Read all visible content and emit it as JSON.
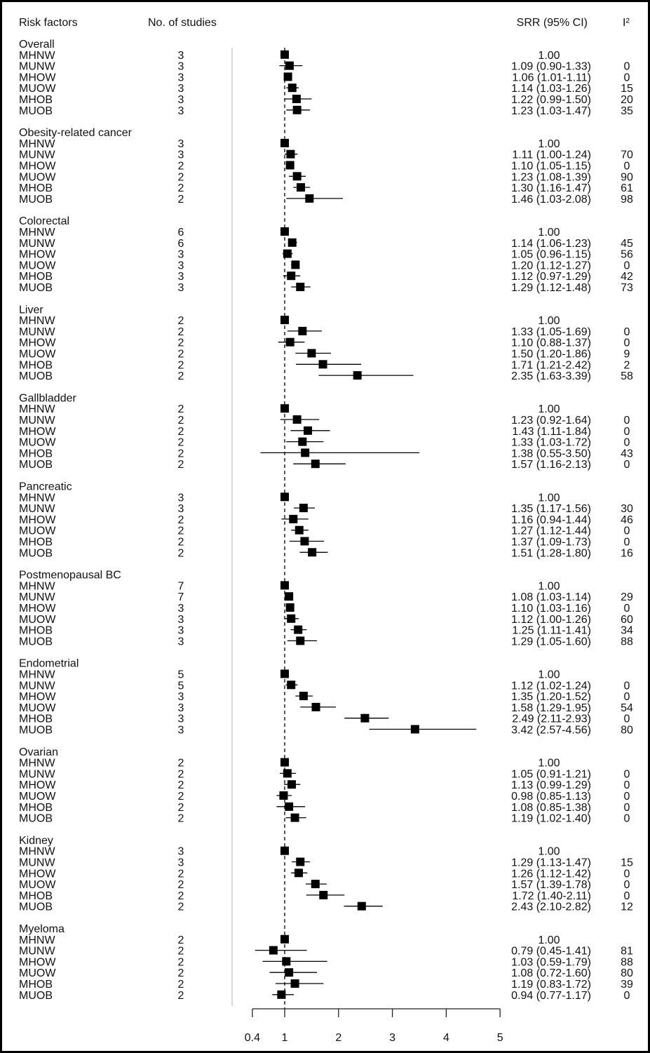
{
  "chart_data": {
    "type": "forest",
    "headers": {
      "risk_factors": "Risk factors",
      "studies": "No. of studies",
      "srr": "SRR (95% CI)",
      "i2": "I²"
    },
    "x_ticks": [
      "0.4",
      "1",
      "2",
      "3",
      "4",
      "5"
    ],
    "xlim": [
      0.4,
      5
    ],
    "x_scale": "linear",
    "reference_line": 1,
    "colors": {
      "marker": "#000000",
      "reference": "#000000",
      "divider": "#cccccc"
    },
    "groups": [
      {
        "name": "Overall",
        "rows": [
          {
            "label": "MHNW",
            "n": "3",
            "srr": "1.00",
            "ci": "",
            "i2": ""
          },
          {
            "label": "MUNW",
            "n": "3",
            "srr": "1.09",
            "lo": 0.9,
            "hi": 1.33,
            "ci": "1.09 (0.90-1.33)",
            "i2": "0"
          },
          {
            "label": "MHOW",
            "n": "3",
            "srr": "1.06",
            "lo": 1.01,
            "hi": 1.11,
            "ci": "1.06 (1.01-1.11)",
            "i2": "0"
          },
          {
            "label": "MUOW",
            "n": "3",
            "srr": "1.14",
            "lo": 1.03,
            "hi": 1.26,
            "ci": "1.14 (1.03-1.26)",
            "i2": "15"
          },
          {
            "label": "MHOB",
            "n": "3",
            "srr": "1.22",
            "lo": 0.99,
            "hi": 1.5,
            "ci": "1.22 (0.99-1.50)",
            "i2": "20"
          },
          {
            "label": "MUOB",
            "n": "3",
            "srr": "1.23",
            "lo": 1.03,
            "hi": 1.47,
            "ci": "1.23 (1.03-1.47)",
            "i2": "35"
          }
        ]
      },
      {
        "name": "Obesity-related cancer",
        "rows": [
          {
            "label": "MHNW",
            "n": "3",
            "srr": "1.00",
            "ci": "",
            "i2": ""
          },
          {
            "label": "MUNW",
            "n": "3",
            "srr": "1.11",
            "lo": 1.0,
            "hi": 1.24,
            "ci": "1.11 (1.00-1.24)",
            "i2": "70"
          },
          {
            "label": "MHOW",
            "n": "2",
            "srr": "1.10",
            "lo": 1.05,
            "hi": 1.15,
            "ci": "1.10 (1.05-1.15)",
            "i2": "0"
          },
          {
            "label": "MUOW",
            "n": "2",
            "srr": "1.23",
            "lo": 1.08,
            "hi": 1.39,
            "ci": "1.23 (1.08-1.39)",
            "i2": "90"
          },
          {
            "label": "MHOB",
            "n": "2",
            "srr": "1.30",
            "lo": 1.16,
            "hi": 1.47,
            "ci": "1.30 (1.16-1.47)",
            "i2": "61"
          },
          {
            "label": "MUOB",
            "n": "2",
            "srr": "1.46",
            "lo": 1.03,
            "hi": 2.08,
            "ci": "1.46 (1.03-2.08)",
            "i2": "98"
          }
        ]
      },
      {
        "name": "Colorectal",
        "rows": [
          {
            "label": "MHNW",
            "n": "6",
            "srr": "1.00",
            "ci": "",
            "i2": ""
          },
          {
            "label": "MUNW",
            "n": "6",
            "srr": "1.14",
            "lo": 1.06,
            "hi": 1.23,
            "ci": "1.14 (1.06-1.23)",
            "i2": "45"
          },
          {
            "label": "MHOW",
            "n": "3",
            "srr": "1.05",
            "lo": 0.96,
            "hi": 1.15,
            "ci": "1.05 (0.96-1.15)",
            "i2": "56"
          },
          {
            "label": "MUOW",
            "n": "3",
            "srr": "1.20",
            "lo": 1.12,
            "hi": 1.27,
            "ci": "1.20 (1.12-1.27)",
            "i2": "0"
          },
          {
            "label": "MHOB",
            "n": "3",
            "srr": "1.12",
            "lo": 0.97,
            "hi": 1.29,
            "ci": "1.12 (0.97-1.29)",
            "i2": "42"
          },
          {
            "label": "MUOB",
            "n": "3",
            "srr": "1.29",
            "lo": 1.12,
            "hi": 1.48,
            "ci": "1.29 (1.12-1.48)",
            "i2": "73"
          }
        ]
      },
      {
        "name": "Liver",
        "rows": [
          {
            "label": "MHNW",
            "n": "2",
            "srr": "1.00",
            "ci": "",
            "i2": ""
          },
          {
            "label": "MUNW",
            "n": "2",
            "srr": "1.33",
            "lo": 1.05,
            "hi": 1.69,
            "ci": "1.33 (1.05-1.69)",
            "i2": "0"
          },
          {
            "label": "MHOW",
            "n": "2",
            "srr": "1.10",
            "lo": 0.88,
            "hi": 1.37,
            "ci": "1.10 (0.88-1.37)",
            "i2": "0"
          },
          {
            "label": "MUOW",
            "n": "2",
            "srr": "1.50",
            "lo": 1.2,
            "hi": 1.86,
            "ci": "1.50 (1.20-1.86)",
            "i2": "9"
          },
          {
            "label": "MHOB",
            "n": "2",
            "srr": "1.71",
            "lo": 1.21,
            "hi": 2.42,
            "ci": "1.71 (1.21-2.42)",
            "i2": "2"
          },
          {
            "label": "MUOB",
            "n": "2",
            "srr": "2.35",
            "lo": 1.63,
            "hi": 3.39,
            "ci": "2.35 (1.63-3.39)",
            "i2": "58"
          }
        ]
      },
      {
        "name": "Gallbladder",
        "rows": [
          {
            "label": "MHNW",
            "n": "2",
            "srr": "1.00",
            "ci": "",
            "i2": ""
          },
          {
            "label": "MUNW",
            "n": "2",
            "srr": "1.23",
            "lo": 0.92,
            "hi": 1.64,
            "ci": "1.23 (0.92-1.64)",
            "i2": "0"
          },
          {
            "label": "MHOW",
            "n": "2",
            "srr": "1.43",
            "lo": 1.11,
            "hi": 1.84,
            "ci": "1.43 (1.11-1.84)",
            "i2": "0"
          },
          {
            "label": "MUOW",
            "n": "2",
            "srr": "1.33",
            "lo": 1.03,
            "hi": 1.72,
            "ci": "1.33 (1.03-1.72)",
            "i2": "0"
          },
          {
            "label": "MHOB",
            "n": "2",
            "srr": "1.38",
            "lo": 0.55,
            "hi": 3.5,
            "ci": "1.38 (0.55-3.50)",
            "i2": "43"
          },
          {
            "label": "MUOB",
            "n": "2",
            "srr": "1.57",
            "lo": 1.16,
            "hi": 2.13,
            "ci": "1.57 (1.16-2.13)",
            "i2": "0"
          }
        ]
      },
      {
        "name": "Pancreatic",
        "rows": [
          {
            "label": "MHNW",
            "n": "3",
            "srr": "1.00",
            "ci": "",
            "i2": ""
          },
          {
            "label": "MUNW",
            "n": "3",
            "srr": "1.35",
            "lo": 1.17,
            "hi": 1.56,
            "ci": "1.35 (1.17-1.56)",
            "i2": "30"
          },
          {
            "label": "MHOW",
            "n": "2",
            "srr": "1.16",
            "lo": 0.94,
            "hi": 1.44,
            "ci": "1.16 (0.94-1.44)",
            "i2": "46"
          },
          {
            "label": "MUOW",
            "n": "2",
            "srr": "1.27",
            "lo": 1.12,
            "hi": 1.44,
            "ci": "1.27 (1.12-1.44)",
            "i2": "0"
          },
          {
            "label": "MHOB",
            "n": "2",
            "srr": "1.37",
            "lo": 1.09,
            "hi": 1.73,
            "ci": "1.37 (1.09-1.73)",
            "i2": "0"
          },
          {
            "label": "MUOB",
            "n": "2",
            "srr": "1.51",
            "lo": 1.28,
            "hi": 1.8,
            "ci": "1.51 (1.28-1.80)",
            "i2": "16"
          }
        ]
      },
      {
        "name": "Postmenopausal BC",
        "rows": [
          {
            "label": "MHNW",
            "n": "7",
            "srr": "1.00",
            "ci": "",
            "i2": ""
          },
          {
            "label": "MUNW",
            "n": "7",
            "srr": "1.08",
            "lo": 1.03,
            "hi": 1.14,
            "ci": "1.08 (1.03-1.14)",
            "i2": "29"
          },
          {
            "label": "MHOW",
            "n": "3",
            "srr": "1.10",
            "lo": 1.03,
            "hi": 1.16,
            "ci": "1.10 (1.03-1.16)",
            "i2": "0"
          },
          {
            "label": "MUOW",
            "n": "3",
            "srr": "1.12",
            "lo": 1.0,
            "hi": 1.26,
            "ci": "1.12 (1.00-1.26)",
            "i2": "60"
          },
          {
            "label": "MHOB",
            "n": "3",
            "srr": "1.25",
            "lo": 1.11,
            "hi": 1.41,
            "ci": "1.25 (1.11-1.41)",
            "i2": "34"
          },
          {
            "label": "MUOB",
            "n": "3",
            "srr": "1.29",
            "lo": 1.05,
            "hi": 1.6,
            "ci": "1.29 (1.05-1.60)",
            "i2": "88"
          }
        ]
      },
      {
        "name": "Endometrial",
        "rows": [
          {
            "label": "MHNW",
            "n": "5",
            "srr": "1.00",
            "ci": "",
            "i2": ""
          },
          {
            "label": "MUNW",
            "n": "5",
            "srr": "1.12",
            "lo": 1.02,
            "hi": 1.24,
            "ci": "1.12 (1.02-1.24)",
            "i2": "0"
          },
          {
            "label": "MHOW",
            "n": "3",
            "srr": "1.35",
            "lo": 1.2,
            "hi": 1.52,
            "ci": "1.35 (1.20-1.52)",
            "i2": "0"
          },
          {
            "label": "MUOW",
            "n": "3",
            "srr": "1.58",
            "lo": 1.29,
            "hi": 1.95,
            "ci": "1.58 (1.29-1.95)",
            "i2": "54"
          },
          {
            "label": "MHOB",
            "n": "3",
            "srr": "2.49",
            "lo": 2.11,
            "hi": 2.93,
            "ci": "2.49 (2.11-2.93)",
            "i2": "0"
          },
          {
            "label": "MUOB",
            "n": "3",
            "srr": "3.42",
            "lo": 2.57,
            "hi": 4.56,
            "ci": "3.42 (2.57-4.56)",
            "i2": "80"
          }
        ]
      },
      {
        "name": "Ovarian",
        "rows": [
          {
            "label": "MHNW",
            "n": "2",
            "srr": "1.00",
            "ci": "",
            "i2": ""
          },
          {
            "label": "MUNW",
            "n": "2",
            "srr": "1.05",
            "lo": 0.91,
            "hi": 1.21,
            "ci": "1.05 (0.91-1.21)",
            "i2": "0"
          },
          {
            "label": "MHOW",
            "n": "2",
            "srr": "1.13",
            "lo": 0.99,
            "hi": 1.29,
            "ci": "1.13 (0.99-1.29)",
            "i2": "0"
          },
          {
            "label": "MUOW",
            "n": "2",
            "srr": "0.98",
            "lo": 0.85,
            "hi": 1.13,
            "ci": "0.98 (0.85-1.13)",
            "i2": "0"
          },
          {
            "label": "MHOB",
            "n": "2",
            "srr": "1.08",
            "lo": 0.85,
            "hi": 1.38,
            "ci": "1.08 (0.85-1.38)",
            "i2": "0"
          },
          {
            "label": "MUOB",
            "n": "2",
            "srr": "1.19",
            "lo": 1.02,
            "hi": 1.4,
            "ci": "1.19 (1.02-1.40)",
            "i2": "0"
          }
        ]
      },
      {
        "name": "Kidney",
        "rows": [
          {
            "label": "MHNW",
            "n": "3",
            "srr": "1.00",
            "ci": "",
            "i2": ""
          },
          {
            "label": "MUNW",
            "n": "3",
            "srr": "1.29",
            "lo": 1.13,
            "hi": 1.47,
            "ci": "1.29 (1.13-1.47)",
            "i2": "15"
          },
          {
            "label": "MHOW",
            "n": "2",
            "srr": "1.26",
            "lo": 1.12,
            "hi": 1.42,
            "ci": "1.26 (1.12-1.42)",
            "i2": "0"
          },
          {
            "label": "MUOW",
            "n": "2",
            "srr": "1.57",
            "lo": 1.39,
            "hi": 1.78,
            "ci": "1.57 (1.39-1.78)",
            "i2": "0"
          },
          {
            "label": "MHOB",
            "n": "2",
            "srr": "1.72",
            "lo": 1.4,
            "hi": 2.11,
            "ci": "1.72 (1.40-2.11)",
            "i2": "0"
          },
          {
            "label": "MUOB",
            "n": "2",
            "srr": "2.43",
            "lo": 2.1,
            "hi": 2.82,
            "ci": "2.43 (2.10-2.82)",
            "i2": "12"
          }
        ]
      },
      {
        "name": "Myeloma",
        "rows": [
          {
            "label": "MHNW",
            "n": "2",
            "srr": "1.00",
            "ci": "",
            "i2": ""
          },
          {
            "label": "MUNW",
            "n": "2",
            "srr": "0.79",
            "lo": 0.45,
            "hi": 1.41,
            "ci": "0.79 (0.45-1.41)",
            "i2": "81"
          },
          {
            "label": "MHOW",
            "n": "2",
            "srr": "1.03",
            "lo": 0.59,
            "hi": 1.79,
            "ci": "1.03 (0.59-1.79)",
            "i2": "88"
          },
          {
            "label": "MUOW",
            "n": "2",
            "srr": "1.08",
            "lo": 0.72,
            "hi": 1.6,
            "ci": "1.08 (0.72-1.60)",
            "i2": "80"
          },
          {
            "label": "MHOB",
            "n": "2",
            "srr": "1.19",
            "lo": 0.83,
            "hi": 1.72,
            "ci": "1.19 (0.83-1.72)",
            "i2": "39"
          },
          {
            "label": "MUOB",
            "n": "2",
            "srr": "0.94",
            "lo": 0.77,
            "hi": 1.17,
            "ci": "0.94 (0.77-1.17)",
            "i2": "0"
          }
        ]
      }
    ]
  }
}
